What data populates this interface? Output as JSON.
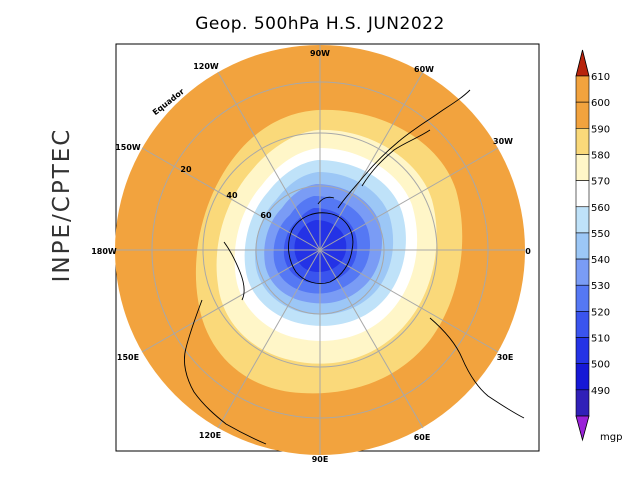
{
  "title": "Geop. 500hPa H.S. JUN2022",
  "side_label": "INPE/CPTEC",
  "map": {
    "projection": "polar-stereographic",
    "hemisphere": "south",
    "equator_label": "Equador",
    "longitude_labels": [
      "0",
      "30W",
      "60W",
      "90W",
      "120W",
      "150W",
      "180W",
      "150E",
      "120E",
      "90E",
      "60E",
      "30E"
    ],
    "latitude_labels": [
      "20",
      "40",
      "60"
    ]
  },
  "colorbar": {
    "unit": "mgp",
    "levels": [
      "610",
      "600",
      "590",
      "580",
      "570",
      "560",
      "550",
      "540",
      "530",
      "520",
      "510",
      "500",
      "490"
    ],
    "colors": [
      "#f2a33e",
      "#f2a33e",
      "#fad97a",
      "#fff6c8",
      "#ffffff",
      "#bfe2f9",
      "#9cc7f6",
      "#7a9cf5",
      "#5578f4",
      "#3a54ee",
      "#2433e6",
      "#1618d6",
      "#3020b8"
    ],
    "top_color": "#b8240c",
    "bottom_color": "#9a22d8"
  }
}
